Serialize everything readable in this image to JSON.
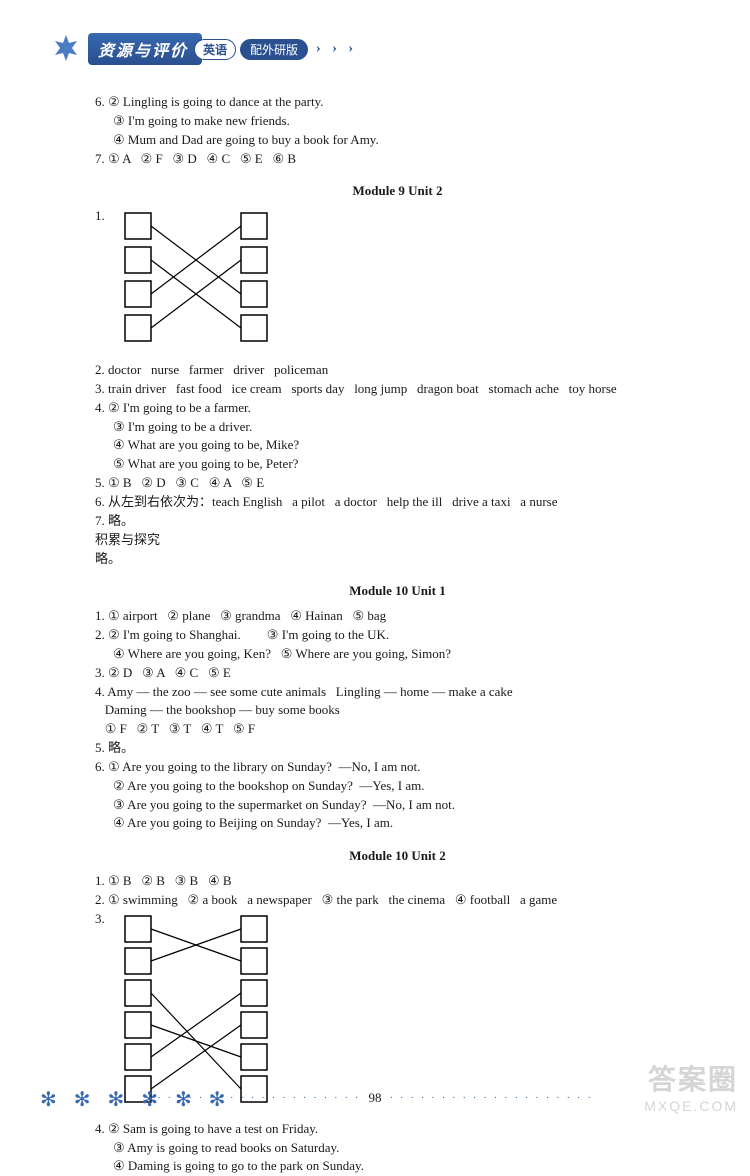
{
  "header": {
    "title": "资源与评价",
    "subject": "英语",
    "version": "配外研版",
    "arrows": "› › ›"
  },
  "top_block": {
    "q6": {
      "num": "6.",
      "l2": "② Lingling is going to dance at the party.",
      "l3": "③ I'm going to make new friends.",
      "l4": "④ Mum and Dad are going to buy a book for Amy."
    },
    "q7": "7. ① A   ② F   ③ D   ④ C   ⑤ E   ⑥ B"
  },
  "m9u2": {
    "title": "Module 9   Unit 2",
    "match_num": "1.",
    "match": {
      "left_count": 4,
      "right_count": 4,
      "box_size": 26,
      "col_gap": 90,
      "row_gap": 8,
      "stroke": "#000000",
      "edges": [
        [
          0,
          2
        ],
        [
          1,
          3
        ],
        [
          2,
          0
        ],
        [
          3,
          1
        ]
      ]
    },
    "q2": "2. doctor   nurse   farmer   driver   policeman",
    "q3": "3. train driver   fast food   ice cream   sports day   long jump   dragon boat   stomach ache   toy horse",
    "q4": {
      "num": "4.",
      "l2": "② I'm going to be a farmer.",
      "l3": "③ I'm going to be a driver.",
      "l4": "④ What are you going to be, Mike?",
      "l5": "⑤ What are you going to be, Peter?"
    },
    "q5": "5. ① B   ② D   ③ C   ④ A   ⑤ E",
    "q6": "6. 从左到右依次为：teach English   a pilot   a doctor   help the ill   drive a taxi   a nurse",
    "q7": "7. 略。",
    "extra1": "积累与探究",
    "extra2": "略。"
  },
  "m10u1": {
    "title": "Module 10   Unit 1",
    "q1": "1. ① airport   ② plane   ③ grandma   ④ Hainan   ⑤ bag",
    "q2": {
      "num": "2.",
      "l2": "② I'm going to Shanghai.        ③ I'm going to the UK.",
      "l4": "④ Where are you going, Ken?   ⑤ Where are you going, Simon?"
    },
    "q3": "3. ② D   ③ A   ④ C   ⑤ E",
    "q4a": "4. Amy — the zoo — see some cute animals   Lingling — home — make a cake",
    "q4b": "   Daming — the bookshop — buy some books",
    "q4c": "   ① F   ② T   ③ T   ④ T   ⑤ F",
    "q5": "5. 略。",
    "q6": {
      "num": "6.",
      "l1": "① Are you going to the library on Sunday?  —No, I am not.",
      "l2": "② Are you going to the bookshop on Sunday?  —Yes, I am.",
      "l3": "③ Are you going to the supermarket on Sunday?  —No, I am not.",
      "l4": "④ Are you going to Beijing on Sunday?  —Yes, I am."
    }
  },
  "m10u2": {
    "title": "Module 10   Unit 2",
    "q1": "1. ① B   ② B   ③ B   ④ B",
    "q2": "2. ① swimming   ② a book   a newspaper   ③ the park   the cinema   ④ football   a game",
    "match_num": "3.",
    "match": {
      "left_count": 6,
      "right_count": 6,
      "box_size": 26,
      "col_gap": 90,
      "row_gap": 6,
      "stroke": "#000000",
      "edges": [
        [
          0,
          1
        ],
        [
          1,
          0
        ],
        [
          2,
          5
        ],
        [
          3,
          4
        ],
        [
          4,
          2
        ],
        [
          5,
          3
        ]
      ]
    },
    "q4": {
      "num": "4.",
      "l2": "② Sam is going to have a test on Friday.",
      "l3": "③ Amy is going to read books on Saturday.",
      "l4": "④ Daming is going to go to the park on Sunday."
    }
  },
  "footer": {
    "stars": "✻  ✻  ✻ ✻ ✻ ✻",
    "dots": "· · · · · · · · · · · · · · · · · · · ·",
    "page": "98"
  },
  "watermark": {
    "top": "答案圈",
    "bot": "MXQE.COM"
  }
}
